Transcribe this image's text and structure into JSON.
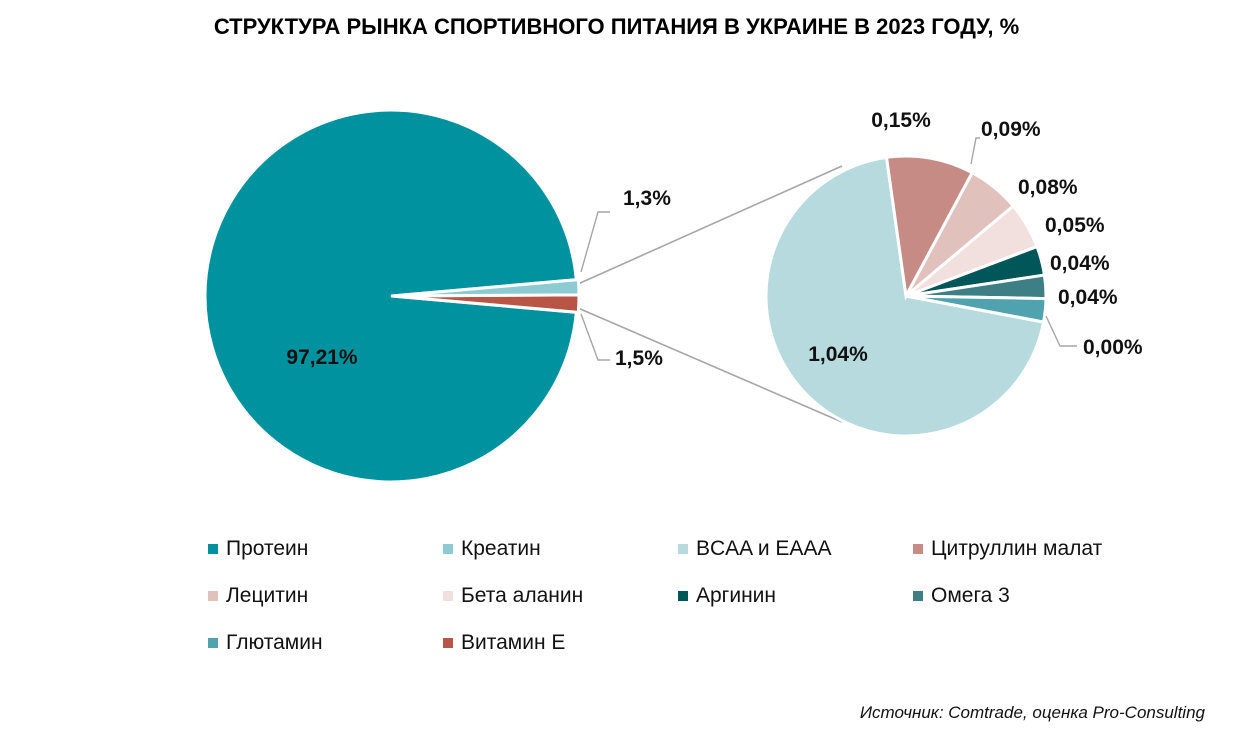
{
  "title": "СТРУКТУРА РЫНКА СПОРТИВНОГО ПИТАНИЯ В УКРАИНЕ В 2023 ГОДУ, %",
  "source": "Источник: Comtrade, оценка Pro-Consulting",
  "chart_data": [
    {
      "type": "pie",
      "slices": [
        {
          "category": "Протеин",
          "value": 97.21,
          "label": "97,21%",
          "color": "#00929F"
        },
        {
          "category": "Креатин",
          "value": 1.3,
          "label": "1,3%",
          "color": "#8DCBD2"
        },
        {
          "category": "Витамин Е",
          "value": 1.5,
          "label": "1,5%",
          "color": "#B85545"
        }
      ]
    },
    {
      "type": "pie",
      "slices": [
        {
          "category": "BCAA и EAAA",
          "value": 1.04,
          "label": "1,04%",
          "color": "#B7DADF"
        },
        {
          "category": "Цитруллин малат",
          "value": 0.15,
          "label": "0,15%",
          "color": "#C68B84"
        },
        {
          "category": "Лецитин",
          "value": 0.09,
          "label": "0,09%",
          "color": "#E1C1BC"
        },
        {
          "category": "Бета аланин",
          "value": 0.08,
          "label": "0,08%",
          "color": "#F1E0DD"
        },
        {
          "category": "Аргинин",
          "value": 0.05,
          "label": "0,05%",
          "color": "#005659"
        },
        {
          "category": "Омега 3",
          "value": 0.04,
          "label": "0,04%",
          "color": "#3E7F86"
        },
        {
          "category": "Глютамин",
          "value": 0.04,
          "label": "0,04%",
          "color": "#4FA2AE"
        },
        {
          "category": "",
          "value": 0.0,
          "label": "0,00%",
          "color": "#4FA2AE"
        }
      ]
    }
  ],
  "legend": [
    {
      "label": "Протеин",
      "color": "#00929F"
    },
    {
      "label": "Креатин",
      "color": "#8DCBD2"
    },
    {
      "label": "BCAA и EAAA",
      "color": "#B7DADF"
    },
    {
      "label": "Цитруллин малат",
      "color": "#C68B84"
    },
    {
      "label": "Лецитин",
      "color": "#E1C1BC"
    },
    {
      "label": "Бета аланин",
      "color": "#F1E0DD"
    },
    {
      "label": "Аргинин",
      "color": "#005659"
    },
    {
      "label": "Омега 3",
      "color": "#3E7F86"
    },
    {
      "label": "Глютамин",
      "color": "#4FA2AE"
    },
    {
      "label": "Витамин Е",
      "color": "#B85545"
    }
  ]
}
